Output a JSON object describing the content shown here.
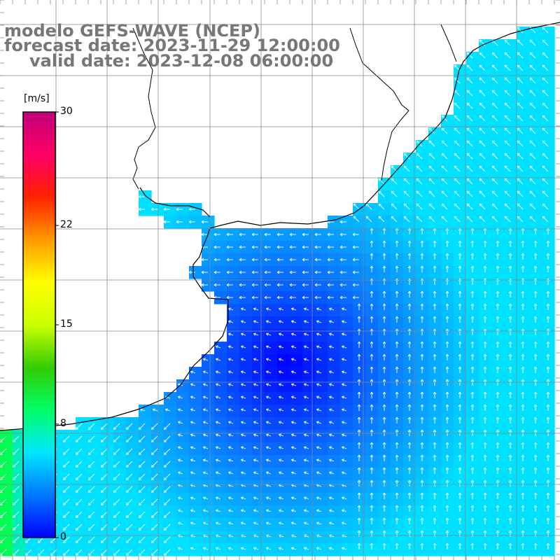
{
  "title": {
    "line1": "modelo GEFS-WAVE (NCEP)",
    "line2": "forecast date: 2023-11-29 12:00:00",
    "line3": "valid date: 2023-12-08 06:00:00"
  },
  "colorbar": {
    "units": "[m/s]",
    "ticks": [
      "30",
      "22",
      "15",
      "8",
      "0"
    ],
    "tick_values": [
      30,
      22,
      15,
      8,
      0
    ],
    "min": 0,
    "max": 30,
    "colors": [
      "#0000ff",
      "#0078ff",
      "#00e6ff",
      "#00ff66",
      "#33cc00",
      "#ccff00",
      "#ffff00",
      "#ff9900",
      "#ff2200",
      "#ff0066",
      "#c0007a"
    ]
  },
  "map": {
    "graticule_step_deg": 1,
    "lon_range": [
      -61,
      -50
    ],
    "lat_range": [
      -41,
      -30
    ],
    "field_color_low": "#0000ff",
    "field_color_mid": "#0a7aff",
    "field_color_high": "#00e0ff",
    "edge_color": "#00ff55",
    "land_color": "#ffffff",
    "coast_color": "#000000",
    "arrow_color": "#ffffff"
  }
}
